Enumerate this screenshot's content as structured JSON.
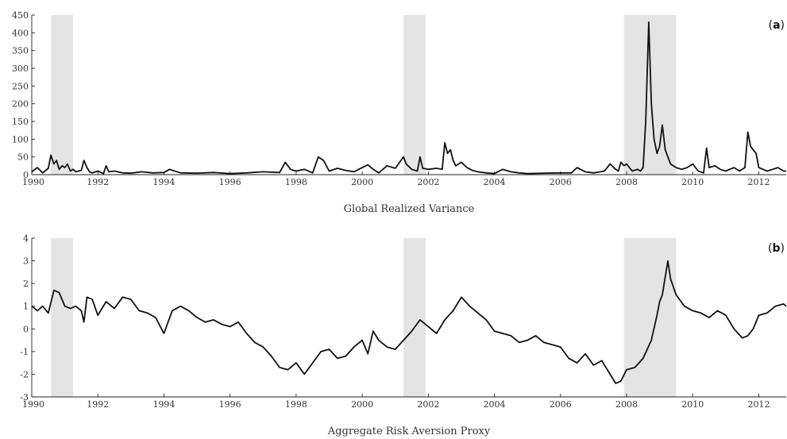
{
  "chart_data": [
    {
      "type": "line",
      "panel_label": "a",
      "xlabel": "Global Realized Variance",
      "ylabel": "",
      "xlim": [
        1990,
        2012.83
      ],
      "ylim": [
        0,
        450
      ],
      "x_ticks": [
        1990,
        1992,
        1994,
        1996,
        1998,
        2000,
        2002,
        2004,
        2006,
        2008,
        2010,
        2012
      ],
      "y_ticks": [
        0,
        50,
        100,
        150,
        200,
        250,
        300,
        350,
        400,
        450
      ],
      "shaded_periods": [
        [
          1990.58,
          1991.25
        ],
        [
          2001.25,
          2001.92
        ],
        [
          2007.92,
          2009.5
        ]
      ],
      "series": [
        {
          "x": [
            1990.0,
            1990.17,
            1990.33,
            1990.5,
            1990.58,
            1990.67,
            1990.75,
            1990.83,
            1990.92,
            1991.0,
            1991.08,
            1991.17,
            1991.25,
            1991.33,
            1991.5,
            1991.58,
            1991.67,
            1991.75,
            1991.83,
            1992.0,
            1992.17,
            1992.25,
            1992.33,
            1992.5,
            1992.75,
            1993.0,
            1993.33,
            1993.67,
            1994.0,
            1994.17,
            1994.5,
            1995.0,
            1995.5,
            1996.0,
            1996.5,
            1997.0,
            1997.5,
            1997.67,
            1997.83,
            1998.0,
            1998.25,
            1998.5,
            1998.67,
            1998.83,
            1999.0,
            1999.25,
            1999.5,
            1999.75,
            2000.0,
            2000.17,
            2000.33,
            2000.5,
            2000.75,
            2001.0,
            2001.25,
            2001.33,
            2001.5,
            2001.67,
            2001.75,
            2001.83,
            2002.0,
            2002.25,
            2002.42,
            2002.5,
            2002.58,
            2002.67,
            2002.75,
            2002.83,
            2003.0,
            2003.17,
            2003.33,
            2003.5,
            2003.75,
            2004.0,
            2004.25,
            2004.5,
            2004.75,
            2005.0,
            2005.5,
            2006.0,
            2006.33,
            2006.5,
            2006.75,
            2007.0,
            2007.33,
            2007.5,
            2007.67,
            2007.75,
            2007.83,
            2007.92,
            2008.0,
            2008.17,
            2008.33,
            2008.42,
            2008.5,
            2008.58,
            2008.67,
            2008.75,
            2008.83,
            2008.92,
            2009.0,
            2009.08,
            2009.17,
            2009.25,
            2009.33,
            2009.5,
            2009.67,
            2009.83,
            2010.0,
            2010.17,
            2010.33,
            2010.42,
            2010.5,
            2010.67,
            2010.83,
            2011.0,
            2011.25,
            2011.42,
            2011.5,
            2011.58,
            2011.67,
            2011.75,
            2011.83,
            2011.92,
            2012.0,
            2012.25,
            2012.42,
            2012.58,
            2012.75,
            2012.83
          ],
          "values": [
            8,
            20,
            5,
            18,
            55,
            30,
            40,
            15,
            25,
            20,
            30,
            10,
            15,
            8,
            12,
            40,
            20,
            8,
            5,
            10,
            3,
            25,
            8,
            10,
            5,
            4,
            8,
            5,
            6,
            15,
            5,
            4,
            6,
            3,
            5,
            8,
            6,
            35,
            15,
            10,
            15,
            5,
            50,
            40,
            10,
            18,
            12,
            8,
            20,
            28,
            15,
            5,
            25,
            18,
            50,
            30,
            15,
            10,
            50,
            18,
            15,
            18,
            15,
            90,
            60,
            70,
            40,
            25,
            35,
            20,
            12,
            8,
            5,
            3,
            15,
            8,
            5,
            3,
            4,
            5,
            5,
            20,
            8,
            5,
            10,
            30,
            15,
            10,
            35,
            25,
            30,
            10,
            15,
            10,
            20,
            150,
            430,
            200,
            100,
            60,
            80,
            140,
            70,
            50,
            30,
            20,
            15,
            20,
            30,
            10,
            5,
            75,
            20,
            25,
            15,
            10,
            20,
            10,
            15,
            20,
            120,
            80,
            70,
            60,
            20,
            10,
            15,
            20,
            10,
            10
          ]
        }
      ]
    },
    {
      "type": "line",
      "panel_label": "b",
      "xlabel": "Aggregate Risk Aversion Proxy",
      "ylabel": "",
      "xlim": [
        1990,
        2012.83
      ],
      "ylim": [
        -3,
        4
      ],
      "x_ticks": [
        1990,
        1992,
        1994,
        1996,
        1998,
        2000,
        2002,
        2004,
        2006,
        2008,
        2010,
        2012
      ],
      "y_ticks": [
        -3,
        -2,
        -1,
        0,
        1,
        2,
        3,
        4
      ],
      "shaded_periods": [
        [
          1990.58,
          1991.25
        ],
        [
          2001.25,
          2001.92
        ],
        [
          2007.92,
          2009.5
        ]
      ],
      "series": [
        {
          "x": [
            1990.0,
            1990.17,
            1990.33,
            1990.5,
            1990.67,
            1990.83,
            1991.0,
            1991.17,
            1991.33,
            1991.5,
            1991.58,
            1991.67,
            1991.83,
            1992.0,
            1992.25,
            1992.5,
            1992.75,
            1993.0,
            1993.25,
            1993.5,
            1993.75,
            1994.0,
            1994.25,
            1994.5,
            1994.75,
            1995.0,
            1995.25,
            1995.5,
            1995.75,
            1996.0,
            1996.25,
            1996.5,
            1996.75,
            1997.0,
            1997.25,
            1997.5,
            1997.75,
            1998.0,
            1998.25,
            1998.5,
            1998.75,
            1999.0,
            1999.25,
            1999.5,
            1999.75,
            2000.0,
            2000.17,
            2000.33,
            2000.5,
            2000.75,
            2001.0,
            2001.25,
            2001.5,
            2001.75,
            2002.0,
            2002.25,
            2002.5,
            2002.75,
            2003.0,
            2003.25,
            2003.5,
            2003.75,
            2004.0,
            2004.25,
            2004.5,
            2004.75,
            2005.0,
            2005.25,
            2005.5,
            2005.75,
            2006.0,
            2006.25,
            2006.5,
            2006.75,
            2007.0,
            2007.25,
            2007.5,
            2007.67,
            2007.83,
            2008.0,
            2008.25,
            2008.5,
            2008.75,
            2008.92,
            2009.0,
            2009.08,
            2009.17,
            2009.25,
            2009.33,
            2009.5,
            2009.75,
            2010.0,
            2010.25,
            2010.5,
            2010.75,
            2011.0,
            2011.25,
            2011.5,
            2011.67,
            2011.83,
            2012.0,
            2012.25,
            2012.5,
            2012.75,
            2012.83
          ],
          "values": [
            1.0,
            0.8,
            1.0,
            0.7,
            1.7,
            1.6,
            1.0,
            0.9,
            1.0,
            0.8,
            0.3,
            1.4,
            1.3,
            0.6,
            1.2,
            0.9,
            1.4,
            1.3,
            0.8,
            0.7,
            0.5,
            -0.2,
            0.8,
            1.0,
            0.8,
            0.5,
            0.3,
            0.4,
            0.2,
            0.1,
            0.3,
            -0.2,
            -0.6,
            -0.8,
            -1.2,
            -1.7,
            -1.8,
            -1.5,
            -2.0,
            -1.5,
            -1.0,
            -0.9,
            -1.3,
            -1.2,
            -0.8,
            -0.5,
            -1.1,
            -0.1,
            -0.5,
            -0.8,
            -0.9,
            -0.5,
            -0.1,
            0.4,
            0.1,
            -0.2,
            0.4,
            0.8,
            1.4,
            1.0,
            0.7,
            0.4,
            -0.1,
            -0.2,
            -0.3,
            -0.6,
            -0.5,
            -0.3,
            -0.6,
            -0.7,
            -0.8,
            -1.3,
            -1.5,
            -1.1,
            -1.6,
            -1.4,
            -2.0,
            -2.4,
            -2.3,
            -1.8,
            -1.7,
            -1.3,
            -0.5,
            0.6,
            1.2,
            1.5,
            2.3,
            3.0,
            2.2,
            1.5,
            1.0,
            0.8,
            0.7,
            0.5,
            0.8,
            0.6,
            0.0,
            -0.4,
            -0.3,
            0.0,
            0.6,
            0.7,
            1.0,
            1.1,
            1.0
          ]
        }
      ]
    }
  ]
}
